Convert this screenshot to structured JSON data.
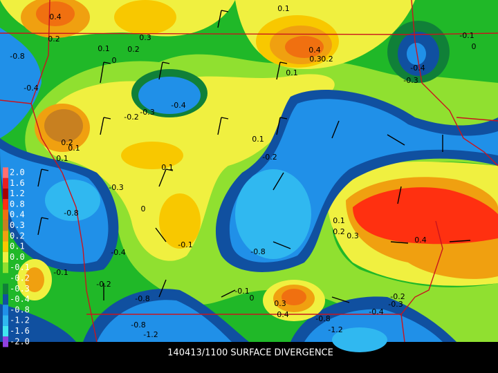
{
  "title": "140413/1100 SURFACE DIVERGENCE",
  "legend": [
    {
      "label": "2.0",
      "color": "#ff7070"
    },
    {
      "label": "1.6",
      "color": "#e82020"
    },
    {
      "label": "1.2",
      "color": "#a80000"
    },
    {
      "label": "0.8",
      "color": "#ff3010"
    },
    {
      "label": "0.4",
      "color": "#f07010"
    },
    {
      "label": "0.3",
      "color": "#c88020"
    },
    {
      "label": "0.2",
      "color": "#f0a010"
    },
    {
      "label": "0.1",
      "color": "#f8c800"
    },
    {
      "label": "0.0",
      "color": "#f0f040"
    },
    {
      "label": "-0.1",
      "color": "#90e030"
    },
    {
      "label": "-0.2",
      "color": "#20b828"
    },
    {
      "label": "-0.3",
      "color": "#108038"
    },
    {
      "label": "-0.4",
      "color": "#1050a0"
    },
    {
      "label": "-0.8",
      "color": "#2090e8"
    },
    {
      "label": "-1.2",
      "color": "#30b8f0"
    },
    {
      "label": "-1.6",
      "color": "#40e8f0"
    },
    {
      "label": "-2.0",
      "color": "#9040e0"
    }
  ],
  "contour_labels": [
    "0.4",
    "0.2",
    "0.3",
    "0.1",
    "0.2",
    "-0.8",
    "0",
    "-0.4",
    "-0.4",
    "-0.3",
    "-0.2",
    "0.4",
    "0.3",
    "0.2",
    "0.1",
    "0.1",
    "-0.1",
    "0",
    "-0.4",
    "-0.3",
    "0.2",
    "0.1",
    "0.1",
    "0.1",
    "-0.2",
    "0.1",
    "-0.3",
    "-0.8",
    "0",
    "0.1",
    "0.2",
    "0.3",
    "-0.1",
    "-0.8",
    "-0.4",
    "0.4",
    "-0.1",
    "-0.2",
    "-0.8",
    "-0.1",
    "0",
    "0.3",
    "0.4",
    "-0.2",
    "-0.3",
    "-0.4",
    "-0.8",
    "-1.2",
    "-0.8",
    "-1.2"
  ]
}
